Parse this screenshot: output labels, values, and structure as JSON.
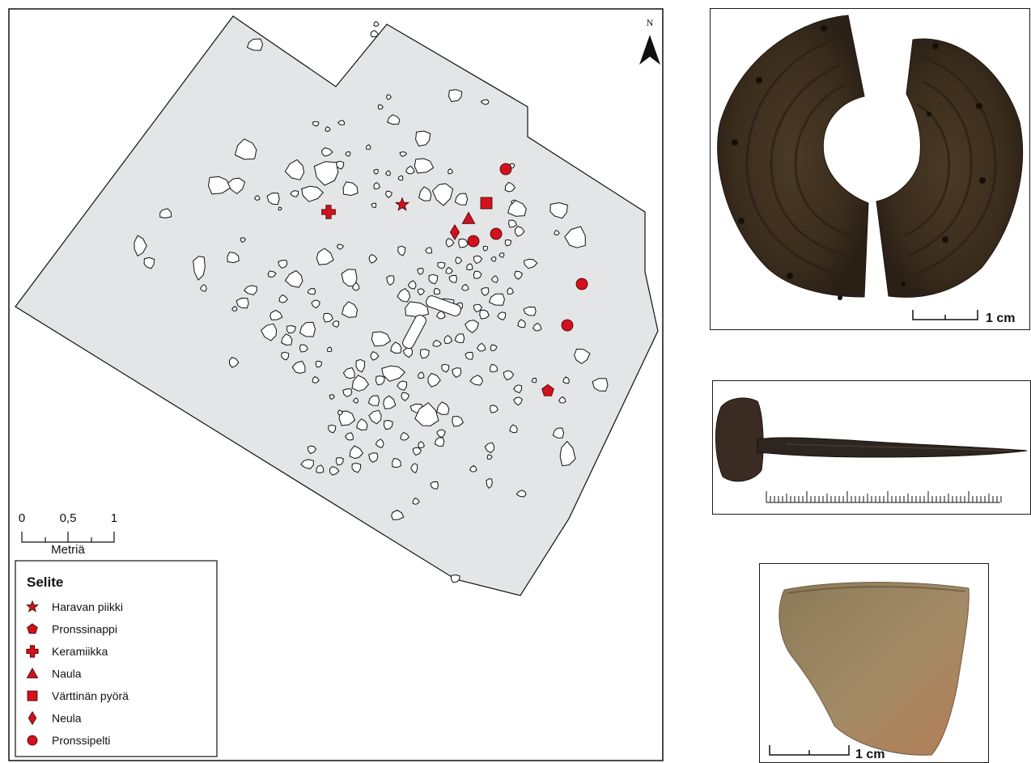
{
  "north_label": "N",
  "scale_bar": {
    "ticks": [
      "0",
      "0,5",
      "1"
    ],
    "unit": "Metriä"
  },
  "legend": {
    "title": "Selite",
    "items": [
      {
        "icon": "star-icon",
        "label": "Haravan piikki"
      },
      {
        "icon": "pentagon-icon",
        "label": "Pronssinappi"
      },
      {
        "icon": "cross-icon",
        "label": "Keramiikka"
      },
      {
        "icon": "triangle-icon",
        "label": "Naula"
      },
      {
        "icon": "square-icon",
        "label": "Värttinän pyörä"
      },
      {
        "icon": "diamond-icon",
        "label": "Neula"
      },
      {
        "icon": "circle-icon",
        "label": "Pronssipelti"
      }
    ]
  },
  "photos": {
    "spindle_scale": "1 cm",
    "sherd_scale": "1 cm"
  },
  "colors": {
    "find_marker": "#d1121c",
    "excavation_area": "#e4e5e7",
    "stone_fill": "#ffffff",
    "outline": "#111111"
  }
}
